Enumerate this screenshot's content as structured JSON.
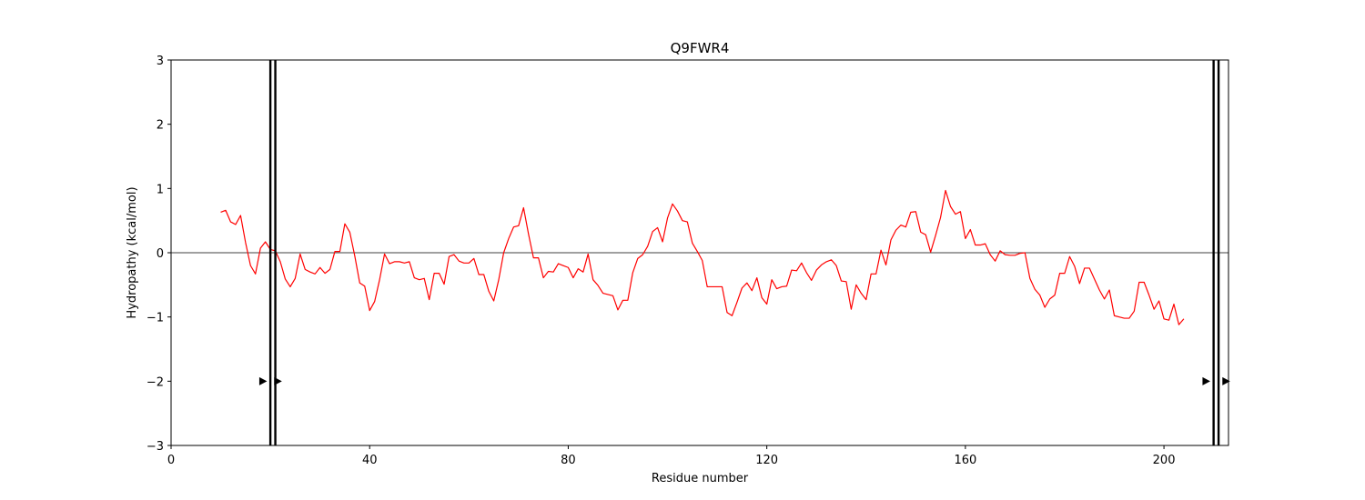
{
  "chart_data": {
    "type": "line",
    "title": "Q9FWR4",
    "xlabel": "Residue number",
    "ylabel": "Hydropathy (kcal/mol)",
    "xlim": [
      0,
      213
    ],
    "ylim": [
      -3,
      3
    ],
    "x_ticks": [
      0,
      40,
      80,
      120,
      160,
      200
    ],
    "y_ticks": [
      -3,
      -2,
      -1,
      0,
      1,
      2,
      3
    ],
    "x_tick_labels": [
      "0",
      "40",
      "80",
      "120",
      "160",
      "200"
    ],
    "y_tick_labels": [
      "−3",
      "−2",
      "−1",
      "0",
      "1",
      "2",
      "3"
    ],
    "grid": false,
    "zero_line": true,
    "series": [
      {
        "color": "#ff0000",
        "x_start": 10,
        "values": [
          0.63,
          0.66,
          0.48,
          0.44,
          0.58,
          0.16,
          -0.2,
          -0.33,
          0.07,
          0.17,
          0.05,
          0.03,
          -0.14,
          -0.41,
          -0.53,
          -0.4,
          -0.02,
          -0.26,
          -0.3,
          -0.33,
          -0.23,
          -0.32,
          -0.26,
          0.02,
          0.02,
          0.45,
          0.32,
          -0.05,
          -0.47,
          -0.52,
          -0.9,
          -0.76,
          -0.42,
          -0.02,
          -0.17,
          -0.14,
          -0.14,
          -0.16,
          -0.14,
          -0.39,
          -0.42,
          -0.4,
          -0.73,
          -0.32,
          -0.32,
          -0.49,
          -0.06,
          -0.03,
          -0.13,
          -0.16,
          -0.16,
          -0.09,
          -0.34,
          -0.34,
          -0.6,
          -0.75,
          -0.42,
          0.0,
          0.22,
          0.4,
          0.42,
          0.7,
          0.29,
          -0.08,
          -0.08,
          -0.39,
          -0.29,
          -0.3,
          -0.17,
          -0.2,
          -0.23,
          -0.39,
          -0.25,
          -0.3,
          -0.02,
          -0.42,
          -0.51,
          -0.63,
          -0.65,
          -0.67,
          -0.89,
          -0.74,
          -0.74,
          -0.31,
          -0.09,
          -0.03,
          0.1,
          0.33,
          0.39,
          0.17,
          0.54,
          0.76,
          0.65,
          0.5,
          0.48,
          0.15,
          0.02,
          -0.12,
          -0.53,
          -0.53,
          -0.53,
          -0.53,
          -0.93,
          -0.98,
          -0.77,
          -0.55,
          -0.47,
          -0.59,
          -0.39,
          -0.7,
          -0.8,
          -0.42,
          -0.56,
          -0.53,
          -0.52,
          -0.27,
          -0.28,
          -0.16,
          -0.31,
          -0.43,
          -0.27,
          -0.19,
          -0.14,
          -0.11,
          -0.2,
          -0.44,
          -0.45,
          -0.88,
          -0.5,
          -0.63,
          -0.73,
          -0.33,
          -0.33,
          0.04,
          -0.19,
          0.2,
          0.35,
          0.43,
          0.4,
          0.63,
          0.64,
          0.32,
          0.28,
          0.01,
          0.27,
          0.55,
          0.97,
          0.72,
          0.6,
          0.64,
          0.22,
          0.36,
          0.12,
          0.12,
          0.14,
          -0.03,
          -0.13,
          0.03,
          -0.03,
          -0.04,
          -0.04,
          -0.01,
          0.0,
          -0.4,
          -0.57,
          -0.66,
          -0.85,
          -0.72,
          -0.66,
          -0.32,
          -0.32,
          -0.06,
          -0.21,
          -0.48,
          -0.24,
          -0.24,
          -0.41,
          -0.58,
          -0.72,
          -0.58,
          -0.98,
          -1.0,
          -1.02,
          -1.02,
          -0.91,
          -0.46,
          -0.46,
          -0.66,
          -0.88,
          -0.75,
          -1.03,
          -1.05,
          -0.8,
          -1.12,
          -1.03
        ]
      }
    ],
    "vertical_lines": [
      20,
      21,
      210,
      211
    ],
    "markers": [
      {
        "x": 18.5,
        "y": -2,
        "symbol": "triangle-right"
      },
      {
        "x": 21.5,
        "y": -2,
        "symbol": "triangle-right"
      },
      {
        "x": 208.5,
        "y": -2,
        "symbol": "triangle-right"
      },
      {
        "x": 212.5,
        "y": -2,
        "symbol": "triangle-right"
      }
    ]
  }
}
